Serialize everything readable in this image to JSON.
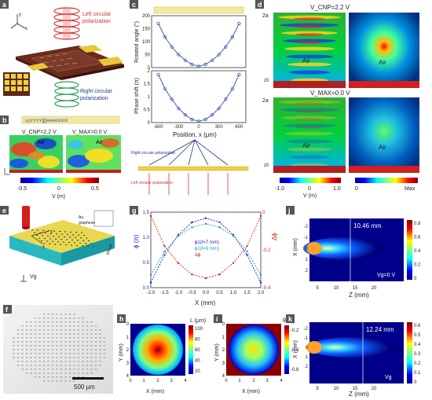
{
  "panel_labels": {
    "a": "a",
    "b": "b",
    "c": "c",
    "d": "d",
    "e": "e",
    "f": "f",
    "g": "g",
    "h": "h",
    "i": "i",
    "j": "j",
    "k": "k"
  },
  "panel_a": {
    "left_label_1": "Left circular",
    "left_label_2": "polarization",
    "right_label_1": "Right circular",
    "right_label_2": "polarization",
    "axis_x": "x",
    "axis_y": "y"
  },
  "panel_b": {
    "label_cnp": "V_CNP=2.2 V",
    "label_max": "V_MAX=0.0 V",
    "air": "Air",
    "colorbar_ticks": [
      "-0.5",
      "0",
      "0.5"
    ],
    "colorbar_label": "V (m)"
  },
  "panel_c": {
    "ylabel_top": "Rotated angle (°)",
    "ylabel_bottom": "Phase shift (π)",
    "xlabel": "Position, x (μm)",
    "right_pol": "Right circular polarization",
    "left_pol": "Left circular polarization"
  },
  "panel_d": {
    "label_top": "V_CNP=2.2 V",
    "label_bottom": "V_MAX=0.0 V",
    "air": "Air",
    "tick_2a": "2a",
    "tick_z0": "z0",
    "cb_left_ticks": [
      "-1.0",
      "0",
      "1.0"
    ],
    "cb_left_label": "V (m)",
    "cb_right_ticks": [
      "0",
      "Max"
    ]
  },
  "panel_e": {
    "au": "Au",
    "graphene": "graphene",
    "silicon": "Silicon",
    "vg": "Vg",
    "axis_x": "x",
    "axis_y": "y",
    "axis_z": "z"
  },
  "panel_f": {
    "scale": "500 μm"
  },
  "panel_g": {
    "ylabel_left": "ϕ (π)",
    "ylabel_right": "Δϕ",
    "xlabel": "X (mm)",
    "legend": [
      "ϕ1(f=7 mm)",
      "ϕ1(f=9 mm)",
      "Δϕ"
    ],
    "colors": {
      "f7": "#1f1fbf",
      "f9": "#20a0b0",
      "dphi": "#e02020"
    }
  },
  "panel_h": {
    "cb_label": "L (μm)",
    "cb_ticks": [
      "100",
      "80",
      "60",
      "40",
      "20"
    ],
    "xlabel": "X (mm)",
    "ylabel": "Y (mm)"
  },
  "panel_i": {
    "cb_label": "θ (π)",
    "cb_ticks": [
      "-0.2",
      "-0.4",
      "-0.6"
    ],
    "xlabel": "X (mm)",
    "ylabel": "Y (mm)"
  },
  "panel_j": {
    "focal": "10.46 mm",
    "vg": "Vg=0 V",
    "xlabel": "Z (mm)",
    "ylabel": "X (mm)",
    "cb_ticks": [
      "0.8",
      "0.6",
      "0.4",
      "0.2",
      "0"
    ]
  },
  "panel_k": {
    "focal": "12.24 mm",
    "vg": "Vg",
    "xlabel": "Z (mm)",
    "ylabel": "X (mm)",
    "cb_ticks": [
      "0.6",
      "0.5",
      "0.4",
      "0.3",
      "0.2",
      "0.1",
      "0"
    ]
  },
  "chart_data": [
    {
      "type": "line",
      "panel": "c-top",
      "x": [
        -600,
        -500,
        -400,
        -300,
        -200,
        -100,
        0,
        100,
        200,
        300,
        400,
        500,
        600
      ],
      "values": [
        170,
        118,
        80,
        50,
        28,
        12,
        5,
        12,
        28,
        50,
        80,
        118,
        170
      ],
      "xlim": [
        -700,
        700
      ],
      "ylim": [
        0,
        200
      ],
      "ylabel": "Rotated angle (°)"
    },
    {
      "type": "line",
      "panel": "c-bottom",
      "x": [
        -600,
        -500,
        -400,
        -300,
        -200,
        -100,
        0,
        100,
        200,
        300,
        400,
        500,
        600
      ],
      "values": [
        1.85,
        1.3,
        0.9,
        0.55,
        0.3,
        0.12,
        0.05,
        0.12,
        0.3,
        0.55,
        0.9,
        1.3,
        1.85
      ],
      "xlim": [
        -700,
        700
      ],
      "ylim": [
        0,
        2
      ],
      "xlabel": "Position, x (μm)",
      "ylabel": "Phase shift (π)"
    },
    {
      "type": "line",
      "panel": "g",
      "x": [
        -2,
        -1.5,
        -1,
        -0.5,
        0,
        0.5,
        1,
        1.5,
        2
      ],
      "series": [
        {
          "name": "ϕ1(f=7 mm)",
          "values": [
            0.1,
            0.65,
            1.05,
            1.3,
            1.38,
            1.3,
            1.05,
            0.65,
            0.1
          ]
        },
        {
          "name": "ϕ1(f=9 mm)",
          "values": [
            0.25,
            0.72,
            1.03,
            1.2,
            1.27,
            1.2,
            1.03,
            0.72,
            0.25
          ]
        },
        {
          "name": "Δϕ",
          "values": [
            -0.02,
            -0.18,
            -0.27,
            -0.33,
            -0.35,
            -0.33,
            -0.27,
            -0.18,
            -0.02
          ]
        }
      ],
      "xlim": [
        -2,
        2
      ],
      "ylim_left": [
        0,
        1.5
      ],
      "ylim_right": [
        -0.4,
        0
      ],
      "xlabel": "X (mm)"
    }
  ]
}
